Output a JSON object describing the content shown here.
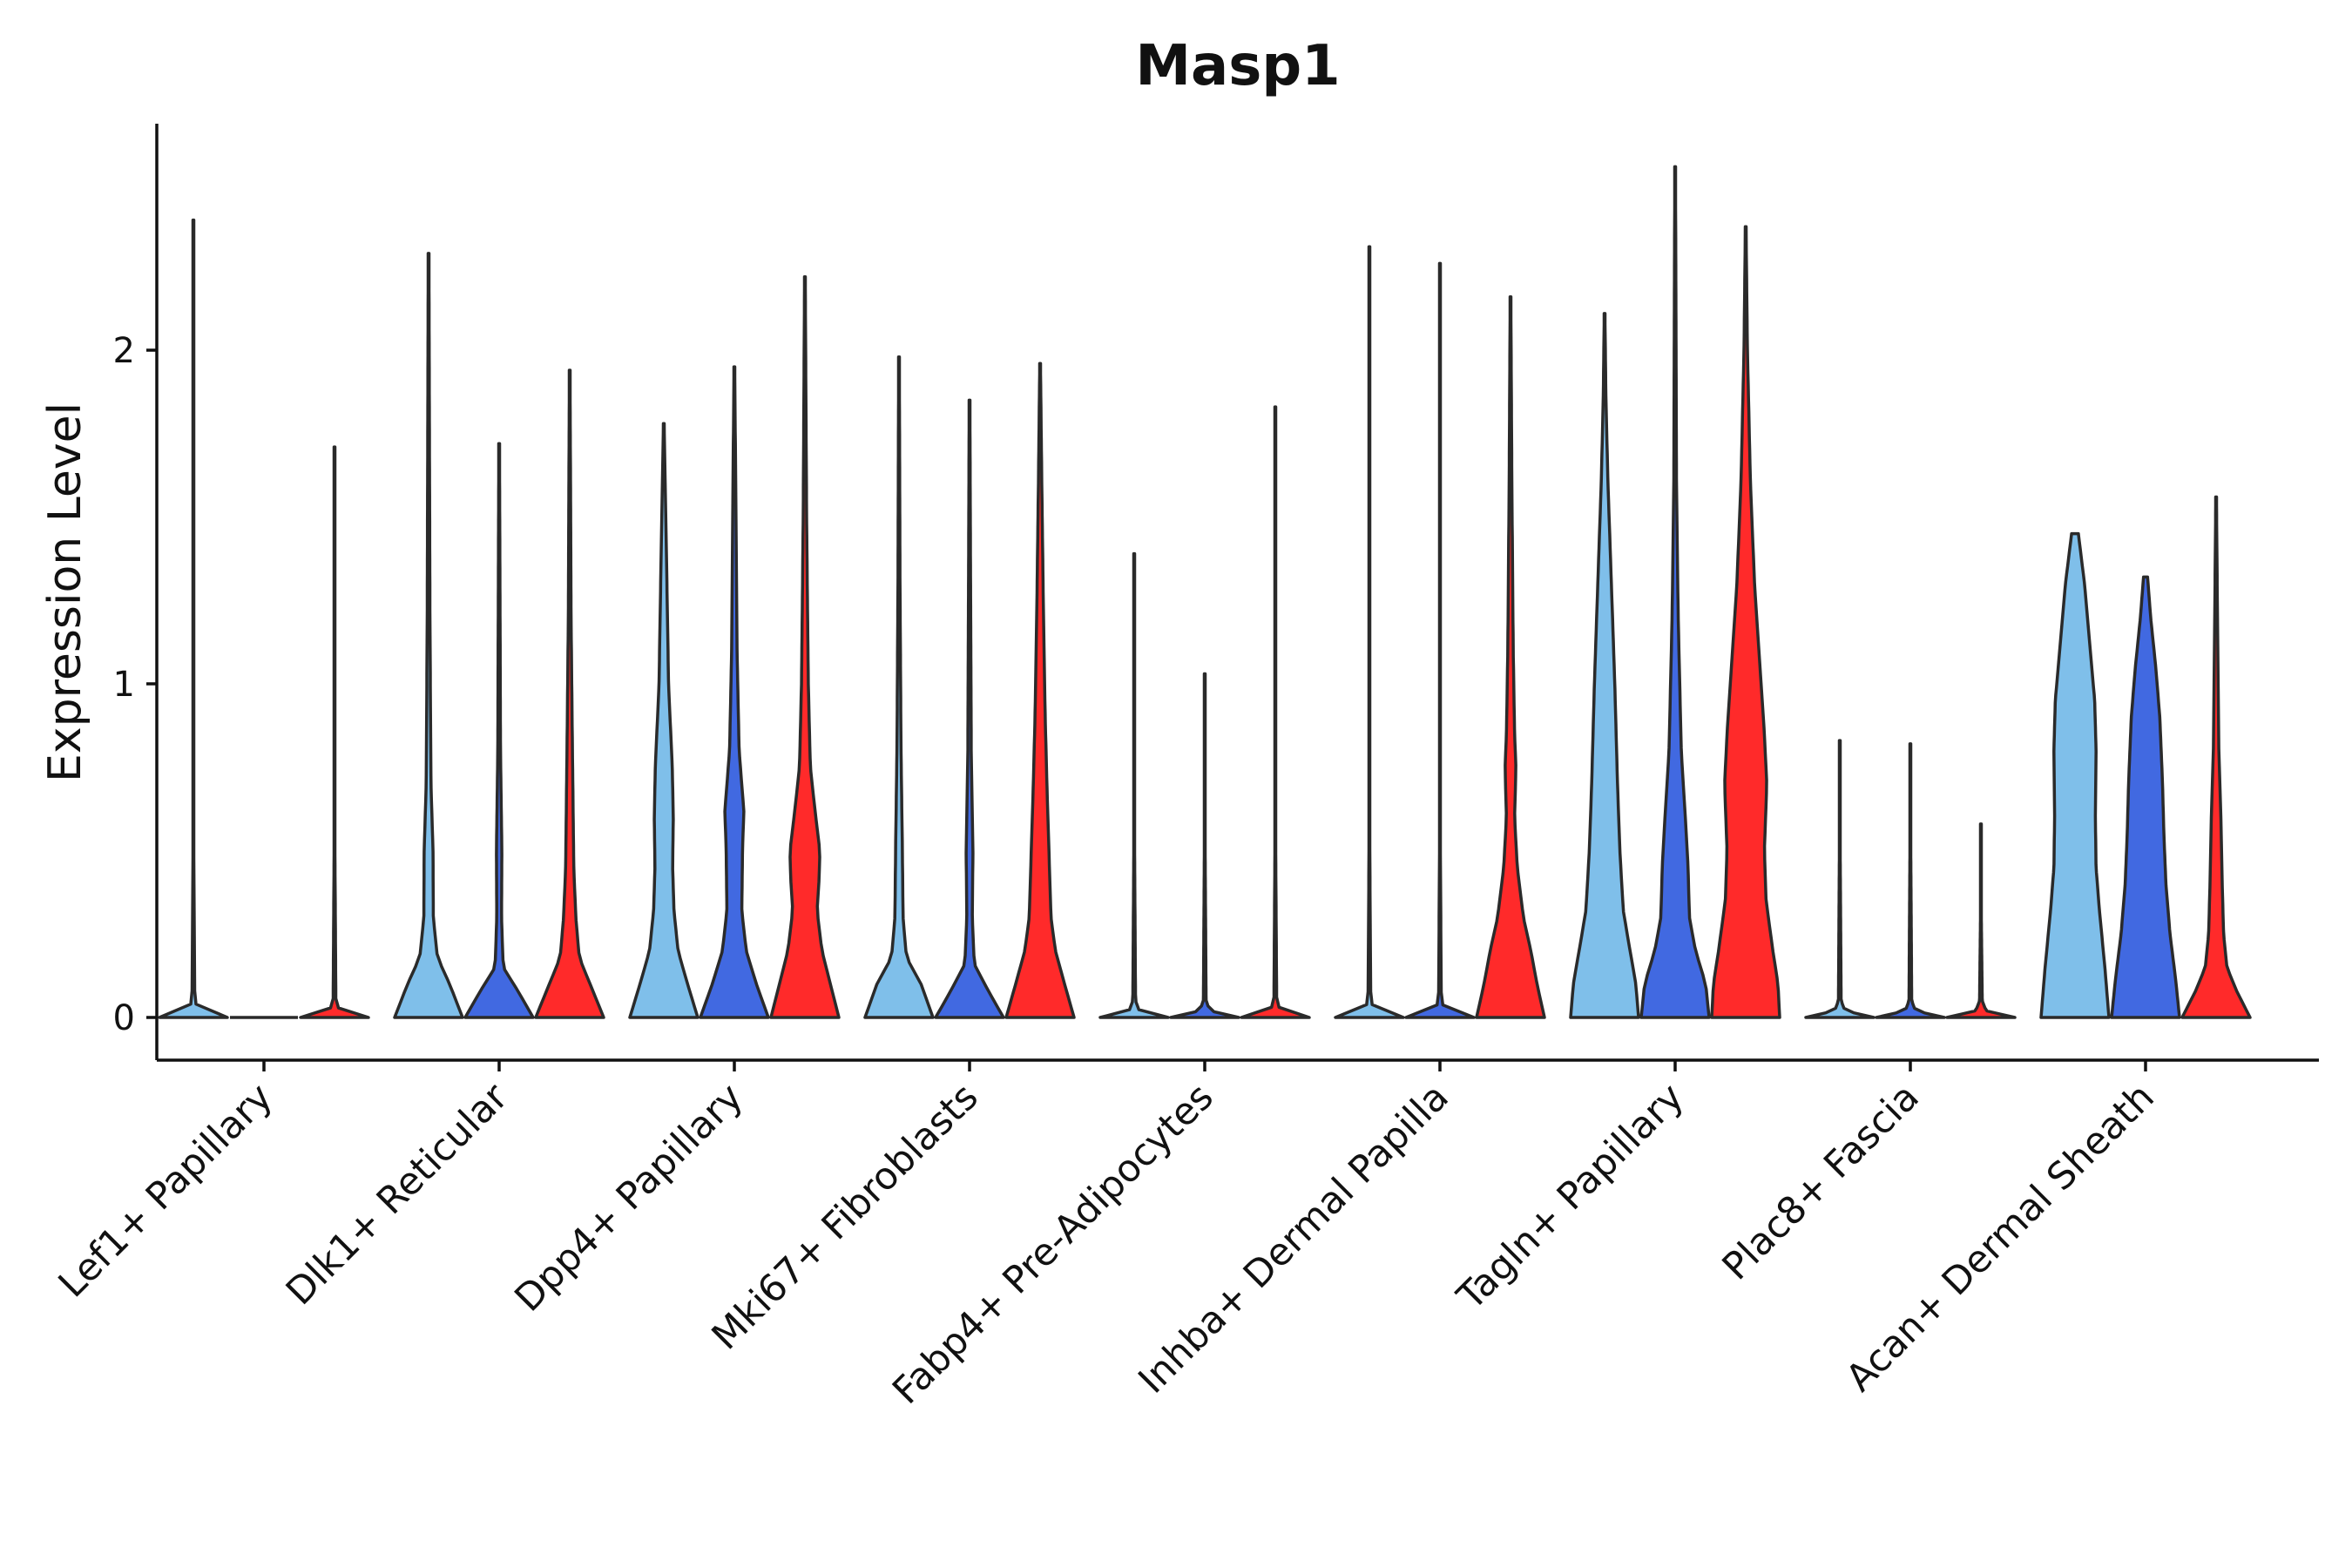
{
  "chart_data": {
    "type": "violin",
    "title": "Masp1",
    "xlabel": "",
    "ylabel": "Expression Level",
    "ylim": [
      -0.13,
      2.7
    ],
    "yticks": [
      0,
      1,
      2
    ],
    "grid": false,
    "legend": "none",
    "categories": [
      "Lef1+ Papillary",
      "Dlk1+ Reticular",
      "Dpp4+ Papillary",
      "Mki67+ Fibroblasts",
      "Fabp4+ Pre-Adipocytes",
      "Inhba+ Dermal Papilla",
      "Tagln+ Papillary",
      "Plac8+ Fascia",
      "Acan+ Dermal Sheath"
    ],
    "groups": [
      {
        "color": "#7fbfea"
      },
      {
        "color": "#4169e1"
      },
      {
        "color": "#ff2a2a"
      }
    ],
    "violins": [
      [
        {
          "max": 2.39,
          "profile": [
            [
              0,
              1.0
            ],
            [
              0.02,
              0.15
            ],
            [
              0.05,
              0.04
            ],
            [
              0.5,
              0.012
            ],
            [
              2.39,
              0.01
            ]
          ]
        },
        {
          "max": 0.0,
          "profile": [
            [
              0,
              1.0
            ]
          ]
        },
        {
          "max": 1.71,
          "profile": [
            [
              0,
              1.0
            ],
            [
              0.02,
              0.15
            ],
            [
              0.05,
              0.04
            ],
            [
              0.5,
              0.012
            ],
            [
              1.71,
              0.01
            ]
          ]
        }
      ],
      [
        {
          "max": 2.29,
          "profile": [
            [
              0,
              1.0
            ],
            [
              0.1,
              0.62
            ],
            [
              0.18,
              0.26
            ],
            [
              0.3,
              0.14
            ],
            [
              0.5,
              0.13
            ],
            [
              0.7,
              0.07
            ],
            [
              1.2,
              0.04
            ],
            [
              2.29,
              0.01
            ]
          ]
        },
        {
          "max": 1.72,
          "profile": [
            [
              0,
              1.0
            ],
            [
              0.08,
              0.55
            ],
            [
              0.15,
              0.12
            ],
            [
              0.3,
              0.07
            ],
            [
              0.5,
              0.08
            ],
            [
              0.8,
              0.04
            ],
            [
              1.72,
              0.01
            ]
          ]
        },
        {
          "max": 1.94,
          "profile": [
            [
              0,
              1.0
            ],
            [
              0.1,
              0.6
            ],
            [
              0.18,
              0.28
            ],
            [
              0.3,
              0.18
            ],
            [
              0.45,
              0.12
            ],
            [
              0.8,
              0.08
            ],
            [
              1.2,
              0.04
            ],
            [
              1.94,
              0.01
            ]
          ]
        }
      ],
      [
        {
          "max": 1.78,
          "profile": [
            [
              0,
              1.0
            ],
            [
              0.1,
              0.7
            ],
            [
              0.2,
              0.42
            ],
            [
              0.32,
              0.3
            ],
            [
              0.45,
              0.26
            ],
            [
              0.6,
              0.28
            ],
            [
              0.75,
              0.25
            ],
            [
              1.0,
              0.14
            ],
            [
              1.5,
              0.06
            ],
            [
              1.78,
              0.01
            ]
          ]
        },
        {
          "max": 1.95,
          "profile": [
            [
              0,
              1.0
            ],
            [
              0.1,
              0.65
            ],
            [
              0.2,
              0.35
            ],
            [
              0.32,
              0.22
            ],
            [
              0.5,
              0.24
            ],
            [
              0.62,
              0.28
            ],
            [
              0.8,
              0.14
            ],
            [
              1.1,
              0.08
            ],
            [
              1.6,
              0.04
            ],
            [
              1.95,
              0.01
            ]
          ]
        },
        {
          "max": 2.22,
          "profile": [
            [
              0,
              1.0
            ],
            [
              0.1,
              0.75
            ],
            [
              0.2,
              0.5
            ],
            [
              0.32,
              0.36
            ],
            [
              0.42,
              0.42
            ],
            [
              0.5,
              0.44
            ],
            [
              0.6,
              0.32
            ],
            [
              0.75,
              0.16
            ],
            [
              1.0,
              0.1
            ],
            [
              1.5,
              0.05
            ],
            [
              2.22,
              0.01
            ]
          ]
        }
      ],
      [
        {
          "max": 1.98,
          "profile": [
            [
              0,
              1.0
            ],
            [
              0.1,
              0.65
            ],
            [
              0.18,
              0.22
            ],
            [
              0.3,
              0.12
            ],
            [
              0.5,
              0.1
            ],
            [
              0.8,
              0.06
            ],
            [
              1.3,
              0.03
            ],
            [
              1.98,
              0.01
            ]
          ]
        },
        {
          "max": 1.85,
          "profile": [
            [
              0,
              1.0
            ],
            [
              0.08,
              0.55
            ],
            [
              0.16,
              0.14
            ],
            [
              0.3,
              0.08
            ],
            [
              0.5,
              0.1
            ],
            [
              0.8,
              0.05
            ],
            [
              1.3,
              0.03
            ],
            [
              1.85,
              0.01
            ]
          ]
        },
        {
          "max": 1.96,
          "profile": [
            [
              0,
              1.0
            ],
            [
              0.1,
              0.72
            ],
            [
              0.2,
              0.45
            ],
            [
              0.3,
              0.32
            ],
            [
              0.5,
              0.26
            ],
            [
              0.7,
              0.2
            ],
            [
              0.9,
              0.15
            ],
            [
              1.2,
              0.1
            ],
            [
              1.6,
              0.05
            ],
            [
              1.96,
              0.01
            ]
          ]
        }
      ],
      [
        {
          "max": 1.39,
          "profile": [
            [
              0,
              1.0
            ],
            [
              0.02,
              0.15
            ],
            [
              0.05,
              0.04
            ],
            [
              0.5,
              0.012
            ],
            [
              1.39,
              0.01
            ]
          ]
        },
        {
          "max": 1.03,
          "profile": [
            [
              0,
              1.0
            ],
            [
              0.02,
              0.15
            ],
            [
              0.05,
              0.04
            ],
            [
              0.5,
              0.012
            ],
            [
              1.03,
              0.01
            ]
          ]
        },
        {
          "max": 1.83,
          "profile": [
            [
              0,
              1.0
            ],
            [
              0.02,
              0.15
            ],
            [
              0.05,
              0.04
            ],
            [
              0.5,
              0.012
            ],
            [
              1.83,
              0.01
            ]
          ]
        }
      ],
      [
        {
          "max": 2.31,
          "profile": [
            [
              0,
              1.0
            ],
            [
              0.02,
              0.15
            ],
            [
              0.05,
              0.04
            ],
            [
              0.5,
              0.012
            ],
            [
              2.31,
              0.01
            ]
          ]
        },
        {
          "max": 2.26,
          "profile": [
            [
              0,
              1.0
            ],
            [
              0.02,
              0.15
            ],
            [
              0.05,
              0.04
            ],
            [
              0.5,
              0.012
            ],
            [
              2.26,
              0.01
            ]
          ]
        },
        {
          "max": 2.16,
          "profile": [
            [
              0,
              1.0
            ],
            [
              0.1,
              0.78
            ],
            [
              0.2,
              0.6
            ],
            [
              0.3,
              0.38
            ],
            [
              0.45,
              0.2
            ],
            [
              0.6,
              0.12
            ],
            [
              0.75,
              0.16
            ],
            [
              0.85,
              0.12
            ],
            [
              1.1,
              0.08
            ],
            [
              1.6,
              0.04
            ],
            [
              2.16,
              0.01
            ]
          ]
        }
      ],
      [
        {
          "max": 2.11,
          "profile": [
            [
              0,
              1.0
            ],
            [
              0.1,
              0.92
            ],
            [
              0.2,
              0.75
            ],
            [
              0.32,
              0.55
            ],
            [
              0.5,
              0.45
            ],
            [
              0.7,
              0.38
            ],
            [
              1.0,
              0.3
            ],
            [
              1.3,
              0.2
            ],
            [
              1.6,
              0.1
            ],
            [
              1.85,
              0.04
            ],
            [
              2.11,
              0.01
            ]
          ]
        },
        {
          "max": 2.55,
          "profile": [
            [
              0,
              1.0
            ],
            [
              0.1,
              0.9
            ],
            [
              0.2,
              0.6
            ],
            [
              0.3,
              0.42
            ],
            [
              0.45,
              0.38
            ],
            [
              0.6,
              0.3
            ],
            [
              0.8,
              0.18
            ],
            [
              1.2,
              0.09
            ],
            [
              1.6,
              0.04
            ],
            [
              2.55,
              0.01
            ]
          ]
        },
        {
          "max": 2.37,
          "profile": [
            [
              0,
              1.0
            ],
            [
              0.1,
              0.95
            ],
            [
              0.2,
              0.8
            ],
            [
              0.35,
              0.6
            ],
            [
              0.5,
              0.55
            ],
            [
              0.7,
              0.62
            ],
            [
              0.85,
              0.55
            ],
            [
              1.05,
              0.42
            ],
            [
              1.3,
              0.26
            ],
            [
              1.6,
              0.14
            ],
            [
              2.0,
              0.05
            ],
            [
              2.37,
              0.01
            ]
          ]
        }
      ],
      [
        {
          "max": 0.83,
          "profile": [
            [
              0,
              1.0
            ],
            [
              0.02,
              0.15
            ],
            [
              0.05,
              0.04
            ],
            [
              0.5,
              0.012
            ],
            [
              0.83,
              0.01
            ]
          ]
        },
        {
          "max": 0.82,
          "profile": [
            [
              0,
              1.0
            ],
            [
              0.02,
              0.15
            ],
            [
              0.05,
              0.04
            ],
            [
              0.5,
              0.012
            ],
            [
              0.82,
              0.01
            ]
          ]
        },
        {
          "max": 0.58,
          "profile": [
            [
              0,
              1.0
            ],
            [
              0.02,
              0.15
            ],
            [
              0.05,
              0.04
            ],
            [
              0.3,
              0.012
            ],
            [
              0.58,
              0.01
            ]
          ]
        }
      ],
      [
        {
          "max": 1.45,
          "profile": [
            [
              0,
              1.0
            ],
            [
              0.15,
              0.88
            ],
            [
              0.32,
              0.72
            ],
            [
              0.45,
              0.62
            ],
            [
              0.6,
              0.6
            ],
            [
              0.8,
              0.62
            ],
            [
              0.95,
              0.58
            ],
            [
              1.1,
              0.45
            ],
            [
              1.3,
              0.28
            ],
            [
              1.45,
              0.1
            ]
          ]
        },
        {
          "max": 1.32,
          "profile": [
            [
              0,
              1.0
            ],
            [
              0.12,
              0.88
            ],
            [
              0.25,
              0.72
            ],
            [
              0.4,
              0.6
            ],
            [
              0.55,
              0.54
            ],
            [
              0.7,
              0.5
            ],
            [
              0.9,
              0.42
            ],
            [
              1.05,
              0.3
            ],
            [
              1.2,
              0.15
            ],
            [
              1.32,
              0.06
            ]
          ]
        },
        {
          "max": 1.56,
          "profile": [
            [
              0,
              1.0
            ],
            [
              0.08,
              0.6
            ],
            [
              0.15,
              0.32
            ],
            [
              0.25,
              0.22
            ],
            [
              0.4,
              0.18
            ],
            [
              0.6,
              0.14
            ],
            [
              0.8,
              0.08
            ],
            [
              1.2,
              0.04
            ],
            [
              1.56,
              0.01
            ]
          ]
        }
      ]
    ]
  }
}
